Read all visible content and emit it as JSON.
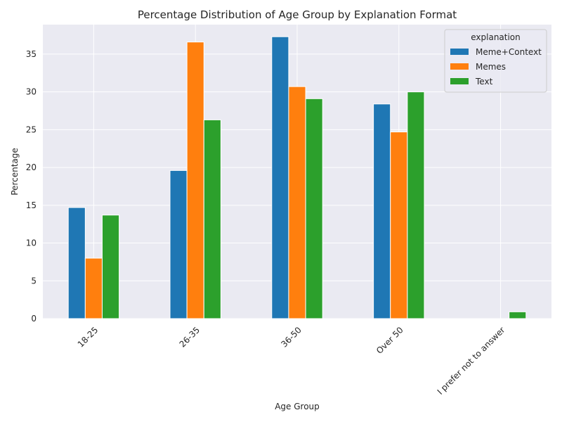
{
  "chart_data": {
    "type": "bar",
    "title": "Percentage Distribution of Age Group by Explanation Format",
    "xlabel": "Age Group",
    "ylabel": "Percentage",
    "categories": [
      "18-25",
      "26-35",
      "36-50",
      "Over 50",
      "I prefer not to answer"
    ],
    "series": [
      {
        "name": "Meme+Context",
        "color": "#1f77b4",
        "values": [
          14.7,
          19.6,
          37.3,
          28.4,
          0
        ]
      },
      {
        "name": "Memes",
        "color": "#ff7f0e",
        "values": [
          8.0,
          36.6,
          30.7,
          24.7,
          0
        ]
      },
      {
        "name": "Text",
        "color": "#2ca02c",
        "values": [
          13.7,
          26.3,
          29.1,
          30.0,
          0.9
        ]
      }
    ],
    "ylim": [
      0,
      38.9
    ],
    "yticks": [
      0,
      5,
      10,
      15,
      20,
      25,
      30,
      35
    ],
    "legend": {
      "title": "explanation",
      "placement": "top-right"
    },
    "grid": true,
    "background": "#eaeaf2",
    "grid_color": "#ffffff"
  }
}
